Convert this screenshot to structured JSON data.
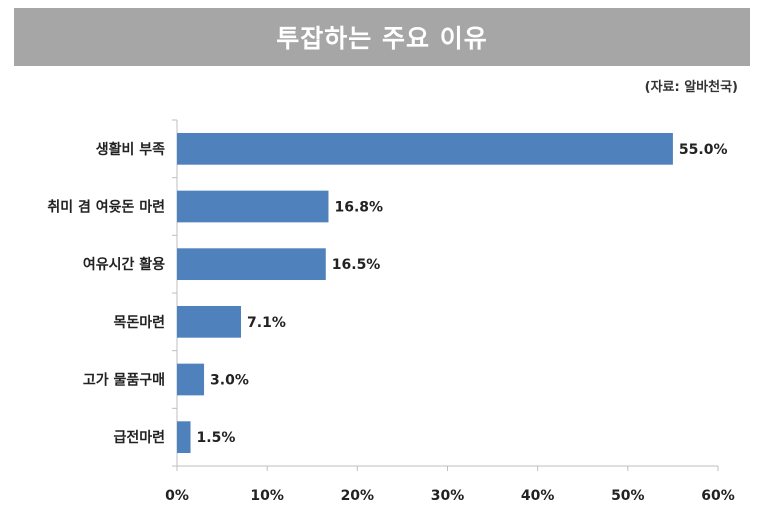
{
  "header": {
    "title": "투잡하는 주요 이유",
    "source": "(자료: 알바천국)"
  },
  "colors": {
    "bar": "#4f81bd",
    "title_bg": "#a6a6a6",
    "axis": "#bfbfbf"
  },
  "chart_data": {
    "type": "bar",
    "orientation": "horizontal",
    "title": "투잡하는 주요 이유",
    "categories": [
      "생활비 부족",
      "취미 겸 여윳돈 마련",
      "여유시간 활용",
      "목돈마련",
      "고가 물품구매",
      "급전마련"
    ],
    "values": [
      55.0,
      16.8,
      16.5,
      7.1,
      3.0,
      1.5
    ],
    "value_labels": [
      "55.0%",
      "16.8%",
      "16.5%",
      "7.1%",
      "3.0%",
      "1.5%"
    ],
    "xlim": [
      0,
      60
    ],
    "xticks": [
      0,
      10,
      20,
      30,
      40,
      50,
      60
    ],
    "xtick_labels": [
      "0%",
      "10%",
      "20%",
      "30%",
      "40%",
      "50%",
      "60%"
    ],
    "xlabel": "",
    "ylabel": "",
    "grid": false,
    "legend": "none"
  }
}
